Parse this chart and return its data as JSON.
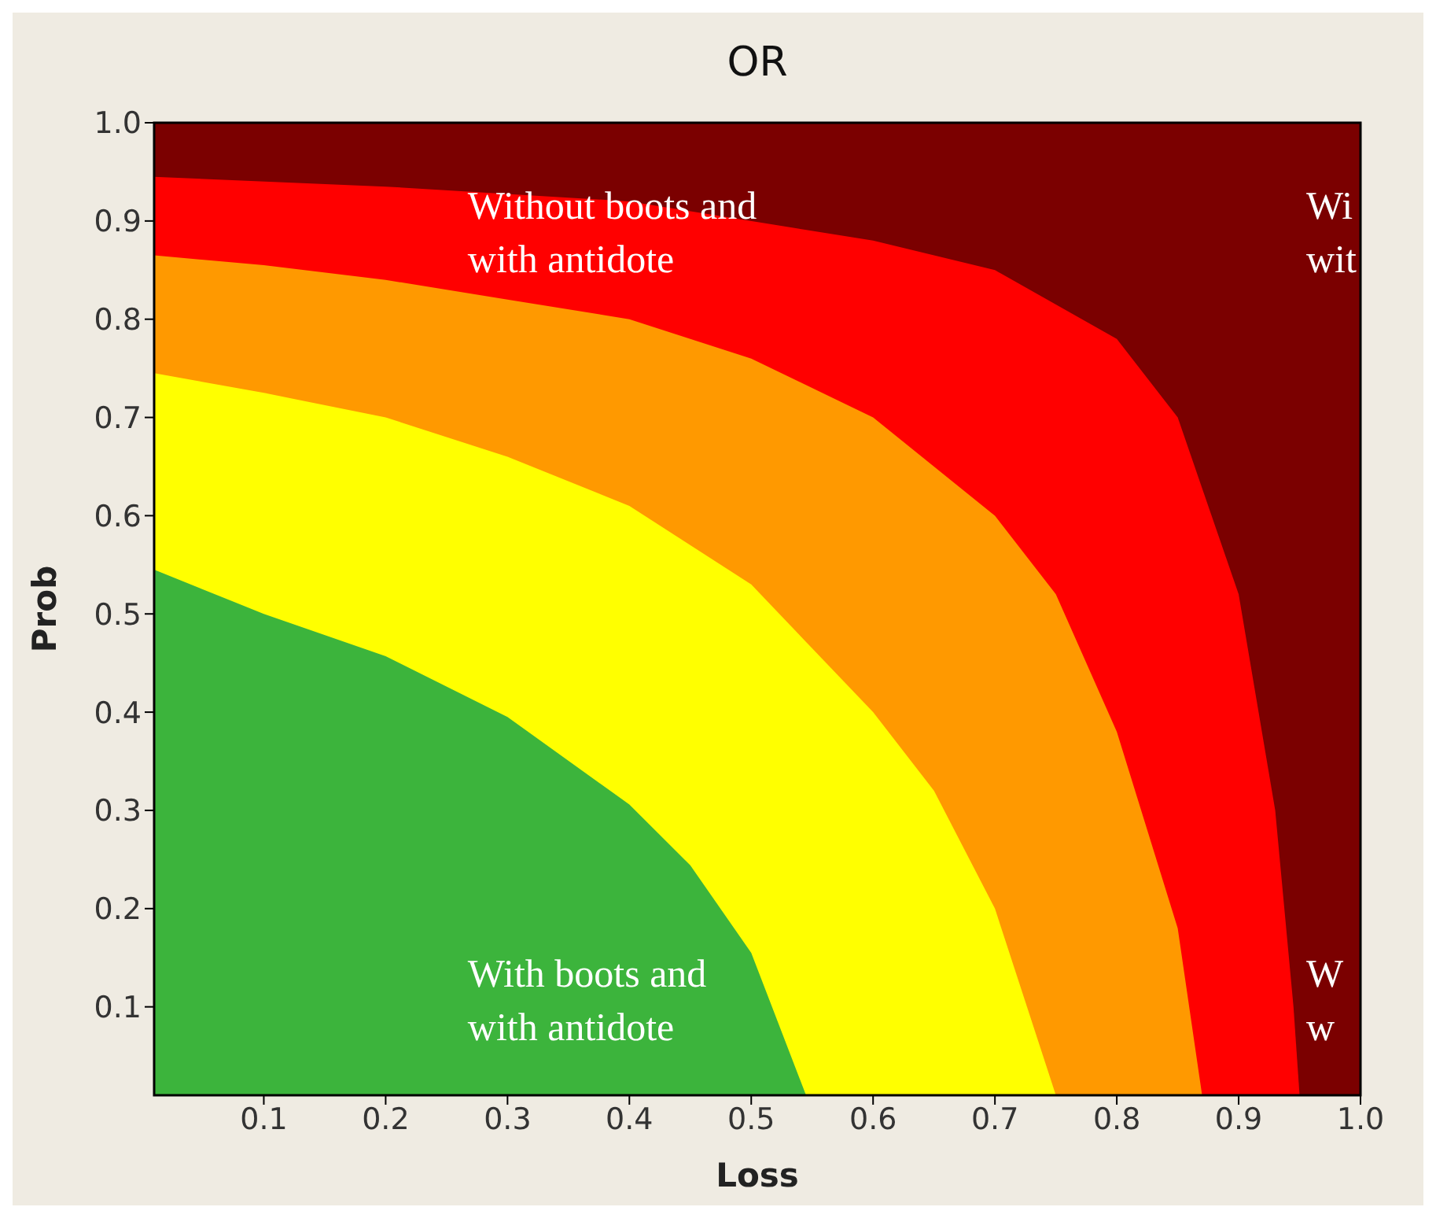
{
  "chart_data": {
    "type": "area",
    "title": "OR",
    "xlabel": "Loss",
    "ylabel": "Prob",
    "xlim": [
      0.01,
      1.0
    ],
    "ylim": [
      0.01,
      1.0
    ],
    "xticks": [
      0.1,
      0.2,
      0.3,
      0.4,
      0.5,
      0.6,
      0.7,
      0.8,
      0.9,
      {
        "value": 1,
        "label": "1.0"
      }
    ],
    "yticks": [
      0.1,
      0.2,
      0.3,
      0.4,
      0.5,
      0.6,
      0.7,
      0.8,
      0.9,
      {
        "value": 1,
        "label": "1.0"
      }
    ],
    "legend": false,
    "series": [
      {
        "color": "#7b0000",
        "x": [
          0.01,
          1.0
        ],
        "values": [
          1.0,
          1.0
        ]
      },
      {
        "color": "#ff0000",
        "x": [
          0.01,
          0.2,
          0.4,
          0.6,
          0.7,
          0.8,
          0.85,
          0.9,
          0.93,
          0.945,
          0.95
        ],
        "values": [
          0.945,
          0.935,
          0.92,
          0.88,
          0.85,
          0.78,
          0.7,
          0.52,
          0.3,
          0.1,
          0.01
        ]
      },
      {
        "color": "#ff9900",
        "x": [
          0.01,
          0.1,
          0.2,
          0.3,
          0.4,
          0.5,
          0.6,
          0.7,
          0.75,
          0.8,
          0.85,
          0.87
        ],
        "values": [
          0.865,
          0.855,
          0.84,
          0.82,
          0.8,
          0.76,
          0.7,
          0.6,
          0.52,
          0.38,
          0.18,
          0.01
        ]
      },
      {
        "color": "#ffff00",
        "x": [
          0.01,
          0.1,
          0.2,
          0.3,
          0.4,
          0.5,
          0.6,
          0.65,
          0.7,
          0.75
        ],
        "values": [
          0.745,
          0.725,
          0.7,
          0.66,
          0.61,
          0.53,
          0.4,
          0.32,
          0.2,
          0.01
        ]
      },
      {
        "color": "#3cb43c",
        "x": [
          0.01,
          0.1,
          0.2,
          0.3,
          0.4,
          0.45,
          0.5,
          0.545
        ],
        "values": [
          0.545,
          0.5,
          0.457,
          0.395,
          0.306,
          0.244,
          0.155,
          0.01
        ]
      }
    ],
    "annotations": [
      "Without boots and\nwith antidote",
      "Wi\nwit",
      "With boots and\nwith antidote",
      "W\nw"
    ]
  }
}
